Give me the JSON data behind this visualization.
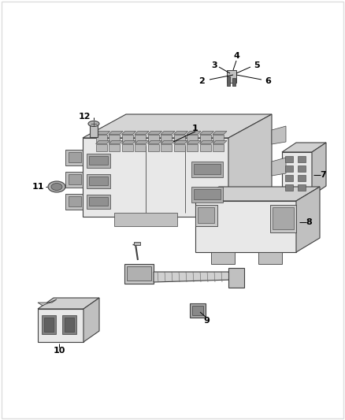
{
  "background_color": "#ffffff",
  "part_fill": "#e8e8e8",
  "part_mid": "#c0c0c0",
  "part_dark": "#606060",
  "part_darker": "#404040",
  "fig_width": 4.38,
  "fig_height": 5.33,
  "dpi": 100
}
